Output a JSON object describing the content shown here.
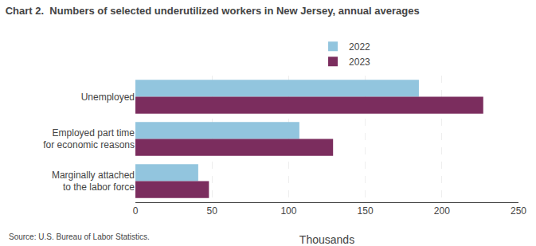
{
  "chart_data": {
    "type": "bar",
    "orientation": "horizontal",
    "title": "Chart 2.  Numbers of selected underutilized workers in New Jersey, annual averages",
    "categories": [
      "Unemployed",
      "Employed part time\nfor economic reasons",
      "Marginally attached\nto the labor force"
    ],
    "series": [
      {
        "name": "2022",
        "color": "#92c5de",
        "values": [
          185,
          107,
          41
        ]
      },
      {
        "name": "2023",
        "color": "#7b2d5e",
        "values": [
          227,
          129,
          48
        ]
      }
    ],
    "xlabel": "Thousands",
    "xlim": [
      0,
      250
    ],
    "xticks": [
      0,
      50,
      100,
      150,
      200,
      250
    ],
    "grid": true,
    "legend": "upper center",
    "source": "Source: U.S. Bureau of Labor Statistics."
  }
}
